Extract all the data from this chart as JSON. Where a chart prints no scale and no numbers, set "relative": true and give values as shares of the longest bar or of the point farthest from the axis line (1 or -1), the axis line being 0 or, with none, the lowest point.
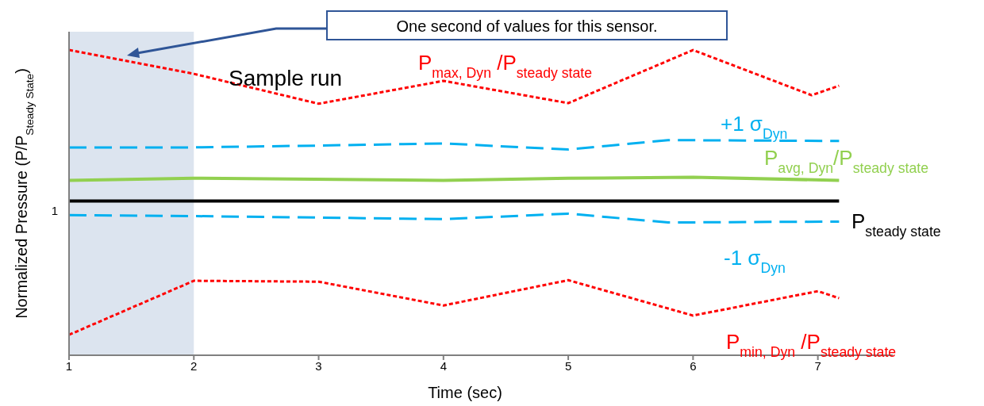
{
  "chart_data": {
    "type": "line",
    "relative": true,
    "xlabel": "Time (sec)",
    "ylabel": "Normalized Pressure (P/P$_{Steady  State}$)",
    "xlim": [
      1,
      7.6
    ],
    "xticks": [
      1,
      2,
      3,
      4,
      5,
      6,
      7
    ],
    "series": [
      {
        "name": "P$_{max, Dyn}$ /P$_{steady state}$",
        "color": "#ff0000",
        "line_style": "dashed",
        "x": [
          1,
          2,
          3,
          4,
          5,
          6,
          6.95,
          7.17
        ],
        "values": [
          1.0,
          0.922,
          0.824,
          0.899,
          0.826,
          1.0,
          0.852,
          0.883
        ]
      },
      {
        "name": "+1 σ$_{Dyn}$",
        "color": "#00b0f0",
        "line_style": "dashed",
        "x": [
          1,
          2,
          3,
          4,
          5,
          5.8,
          7.17
        ],
        "values": [
          0.681,
          0.681,
          0.687,
          0.694,
          0.674,
          0.705,
          0.702
        ]
      },
      {
        "name": "P$_{avg, Dyn}$/P$_{steady state}$",
        "color": "#92d050",
        "line_style": "solid",
        "x": [
          1,
          2,
          4,
          5,
          6,
          7.17
        ],
        "values": [
          0.573,
          0.58,
          0.573,
          0.58,
          0.583,
          0.573
        ]
      },
      {
        "name": "P$_{steady state}$",
        "color": "#000000",
        "line_style": "solid",
        "x": [
          1,
          7.17
        ],
        "values": [
          0.505,
          0.505
        ]
      },
      {
        "name": "-1 σ$_{Dyn}$",
        "color": "#00b0f0",
        "line_style": "dashed",
        "x": [
          1,
          2,
          4,
          5,
          5.8,
          7.17
        ],
        "values": [
          0.459,
          0.456,
          0.446,
          0.464,
          0.435,
          0.438
        ]
      },
      {
        "name": "P$_{min, Dyn}$ /P$_{steady state}$",
        "color": "#ff0000",
        "line_style": "dashed",
        "x": [
          1,
          2,
          3,
          4,
          5,
          6,
          7,
          7.17
        ],
        "values": [
          0.067,
          0.244,
          0.241,
          0.163,
          0.246,
          0.13,
          0.21,
          0.187
        ]
      }
    ],
    "bands": [
      {
        "axis": "x",
        "from": 1,
        "to": 2,
        "color": "#dce4ef"
      }
    ],
    "annotations": [
      "One second of values for this sensor.",
      "Sample run",
      "1"
    ]
  }
}
